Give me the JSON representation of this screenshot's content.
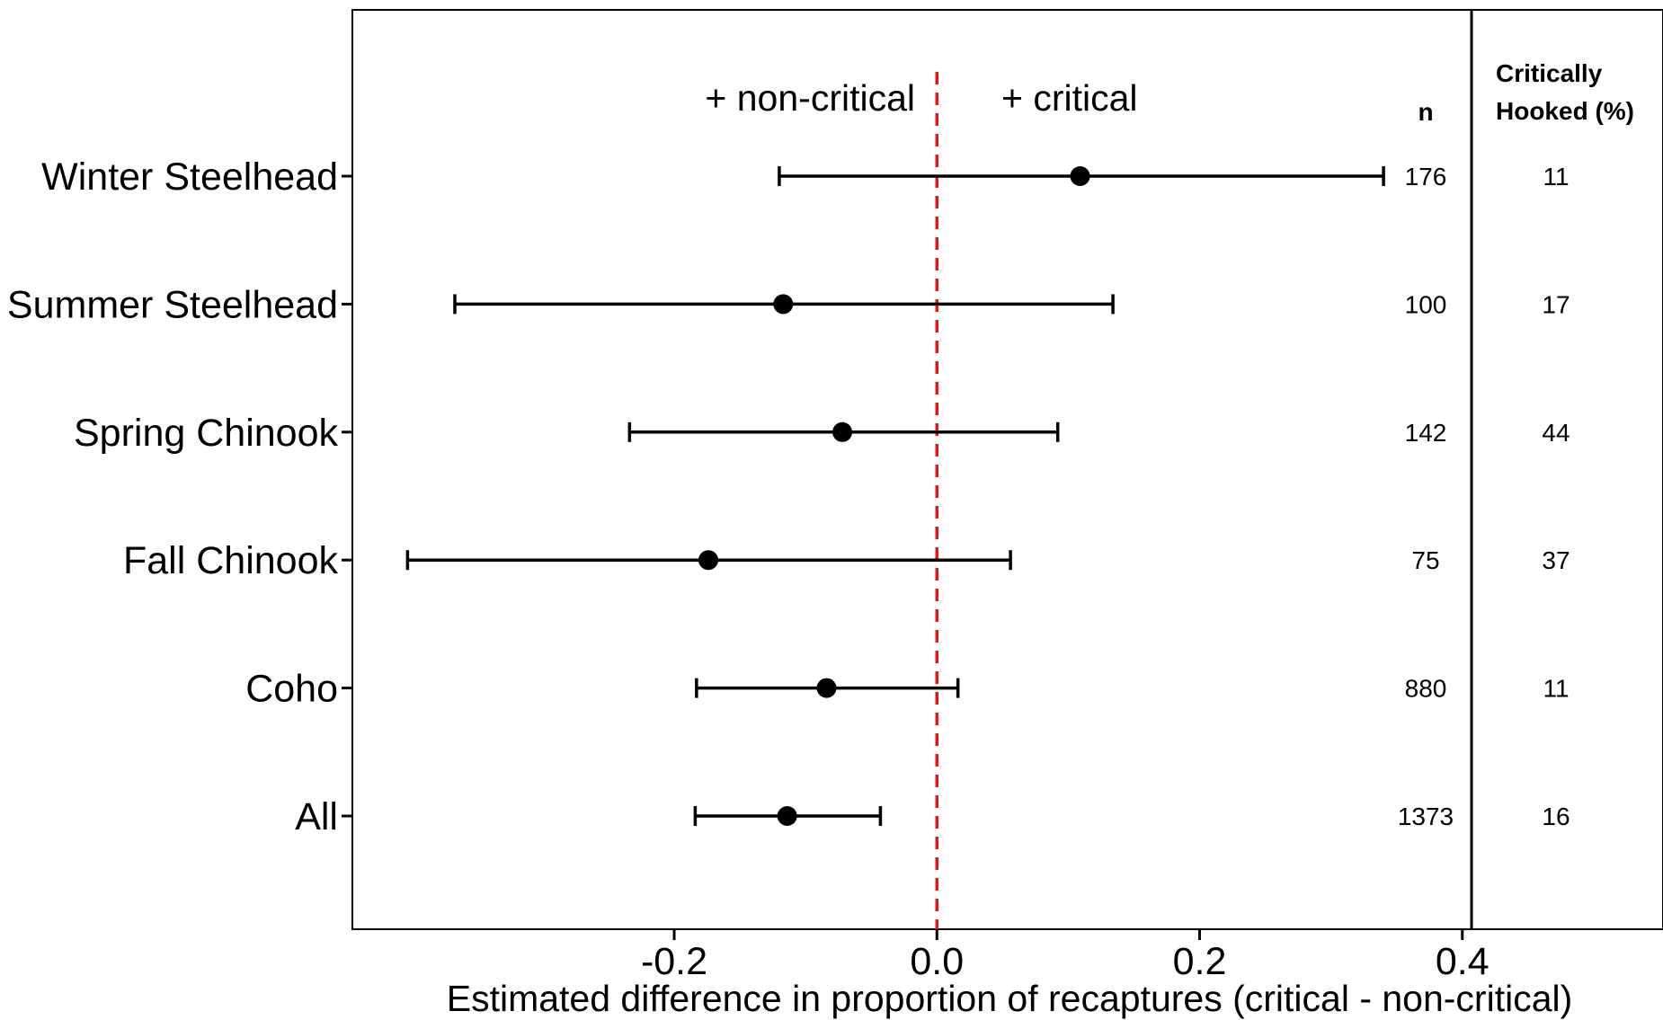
{
  "chart_data": {
    "type": "scatter",
    "subtype": "forest-plot",
    "xlabel": "Estimated difference in proportion of recaptures (critical - non-critical)",
    "ylabel": "",
    "xlim": [
      -0.445,
      0.407
    ],
    "x_ticks": [
      "-0.2",
      "0.0",
      "0.2",
      "0.4"
    ],
    "reference_line": {
      "x": 0.0,
      "style": "dashed",
      "color": "#e01a1a"
    },
    "annotations": {
      "left": "+ non-critical",
      "right": "+ critical"
    },
    "table_headers": {
      "n": "n",
      "pct_line1": "Critically",
      "pct_line2": "Hooked (%)"
    },
    "grid": false,
    "legend": "none",
    "rows": [
      {
        "label": "Winter Steelhead",
        "estimate": 0.109,
        "lower": -0.12,
        "upper": 0.34,
        "n": "176",
        "pct": "11"
      },
      {
        "label": "Summer Steelhead",
        "estimate": -0.117,
        "lower": -0.367,
        "upper": 0.134,
        "n": "100",
        "pct": "17"
      },
      {
        "label": "Spring Chinook",
        "estimate": -0.072,
        "lower": -0.234,
        "upper": 0.092,
        "n": "142",
        "pct": "44"
      },
      {
        "label": "Fall Chinook",
        "estimate": -0.174,
        "lower": -0.403,
        "upper": 0.056,
        "n": "75",
        "pct": "37"
      },
      {
        "label": "Coho",
        "estimate": -0.084,
        "lower": -0.183,
        "upper": 0.016,
        "n": "880",
        "pct": "11"
      },
      {
        "label": "All",
        "estimate": -0.114,
        "lower": -0.184,
        "upper": -0.043,
        "n": "1373",
        "pct": "16"
      }
    ]
  }
}
